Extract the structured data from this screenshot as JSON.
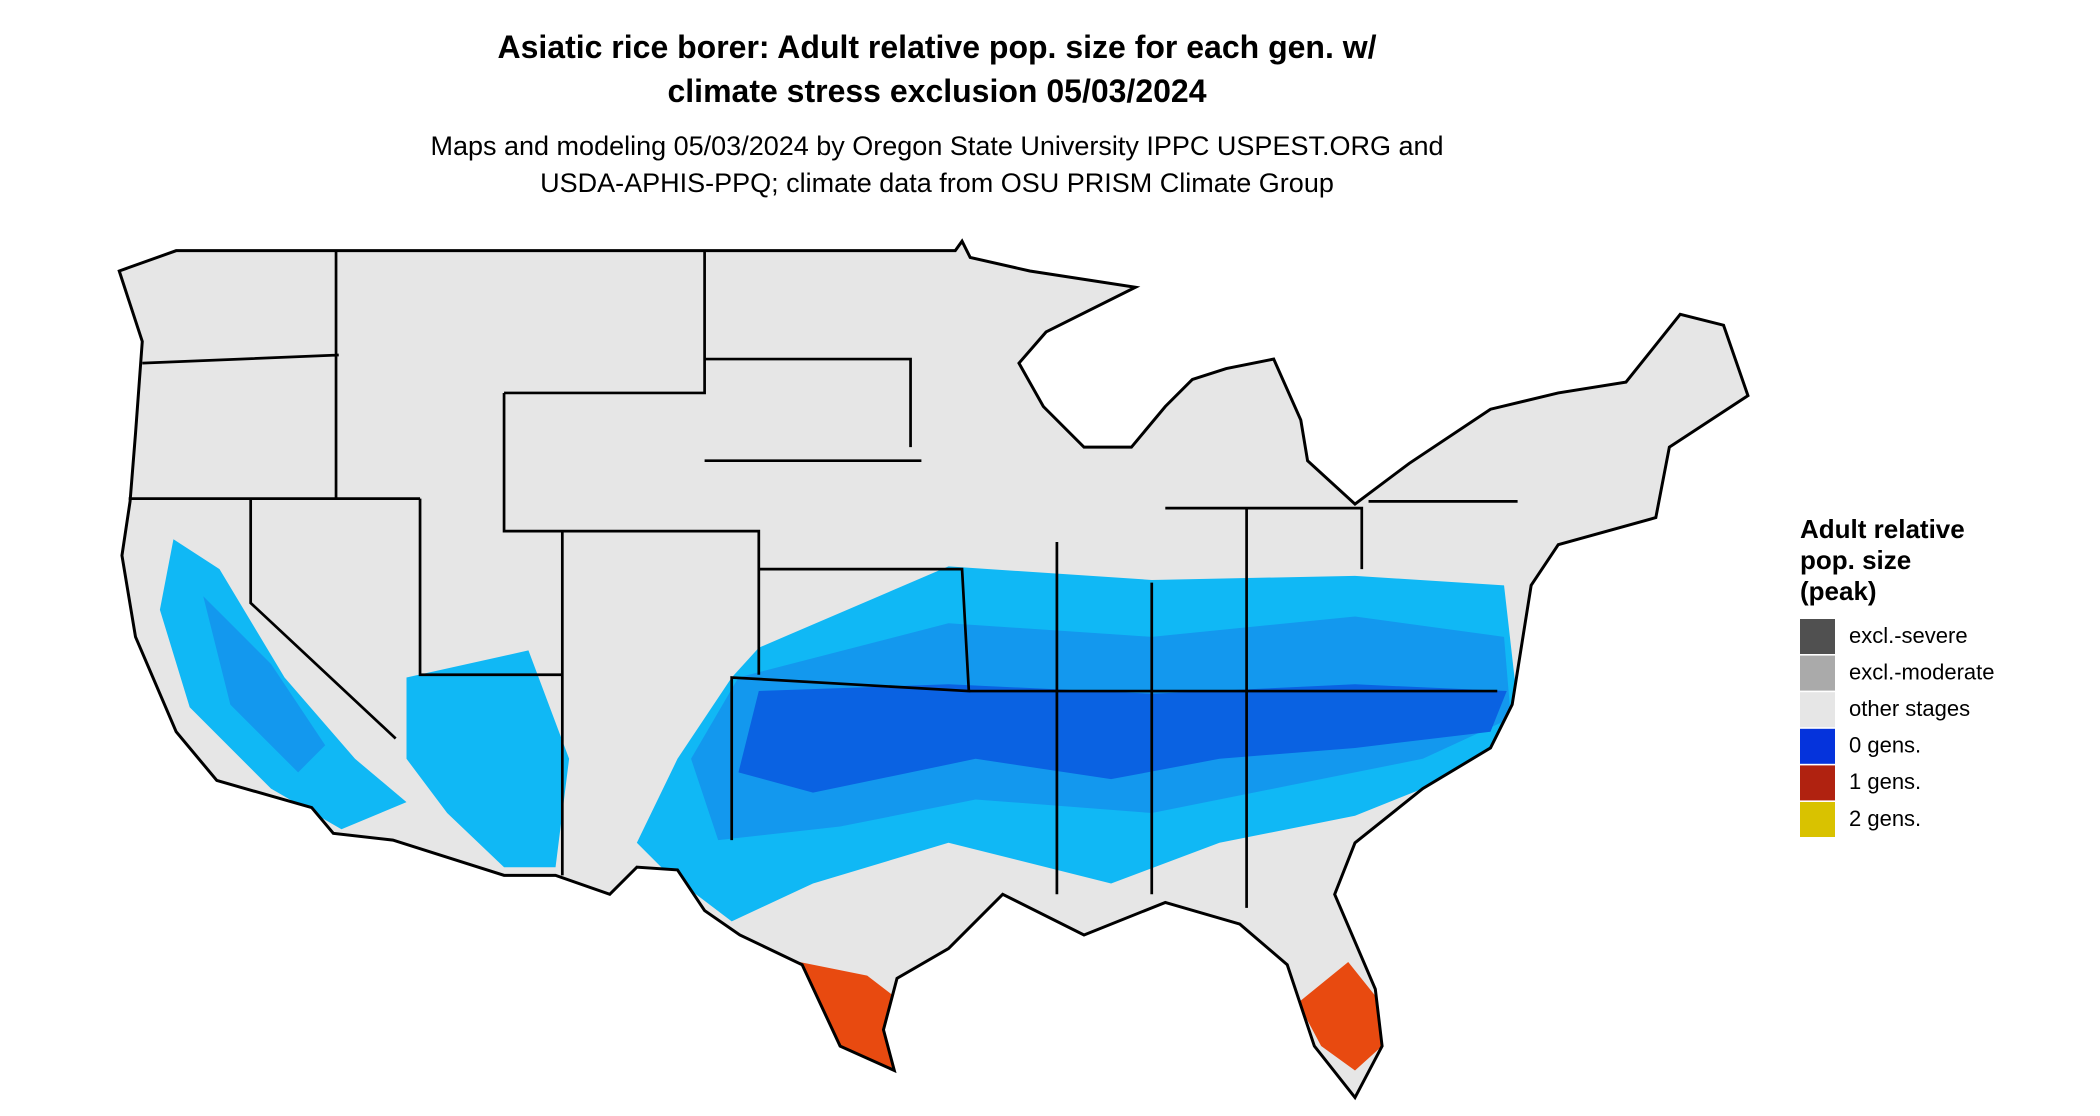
{
  "title": [
    "Asiatic rice borer: Adult relative pop. size for each gen. w/",
    "climate stress exclusion 05/03/2024"
  ],
  "subtitle": [
    "Maps and modeling 05/03/2024 by Oregon State University IPPC USPEST.ORG and",
    "USDA-APHIS-PPQ; climate data from OSU PRISM Climate Group"
  ],
  "legend": {
    "title": [
      "Adult relative",
      "pop. size",
      "(peak)"
    ],
    "items": [
      {
        "label": "excl.-severe",
        "color": "#505050"
      },
      {
        "label": "excl.-moderate",
        "color": "#aaaaaa"
      },
      {
        "label": "other stages",
        "color": "#e6e6e6"
      },
      {
        "label": "0 gens.",
        "color": "#0533dc"
      },
      {
        "label": "1 gens.",
        "color": "#b02210"
      },
      {
        "label": "2 gens.",
        "color": "#d9c200"
      }
    ]
  }
}
